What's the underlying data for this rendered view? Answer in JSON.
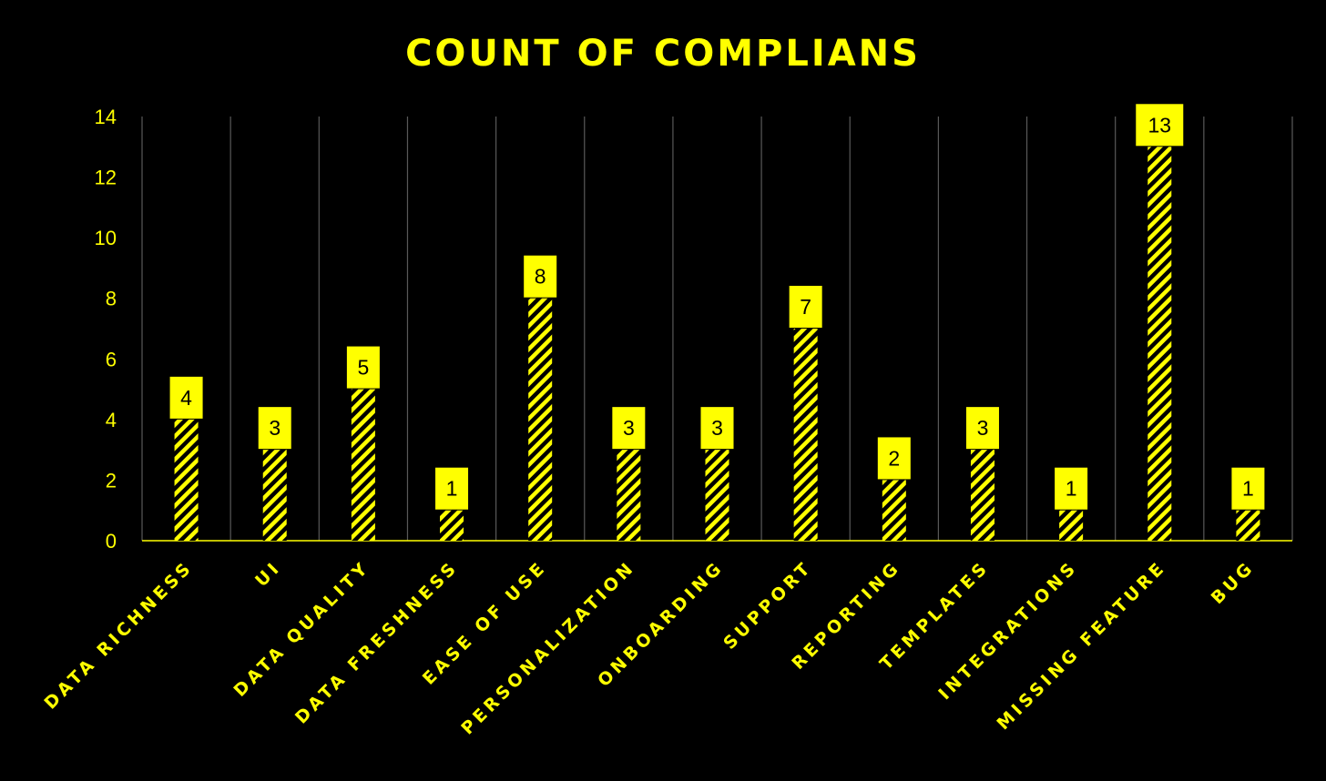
{
  "chart_data": {
    "type": "bar",
    "title": "COUNT OF COMPLIANS",
    "xlabel": "",
    "ylabel": "",
    "categories": [
      "DATA RICHNESS",
      "UI",
      "DATA QUALITY",
      "DATA FRESHNESS",
      "EASE OF USE",
      "PERSONALIZATION",
      "ONBOARDING",
      "SUPPORT",
      "REPORTING",
      "TEMPLATES",
      "INTEGRATIONS",
      "MISSING FEATURE",
      "BUG"
    ],
    "values": [
      4,
      3,
      5,
      1,
      8,
      3,
      3,
      7,
      2,
      3,
      1,
      13,
      1
    ],
    "ylim": [
      0,
      14
    ],
    "yticks": [
      0,
      2,
      4,
      6,
      8,
      10,
      12,
      14
    ],
    "grid": "vertical",
    "legend": "none",
    "data_labels": true,
    "colors": {
      "background": "#000000",
      "accent": "#FFFF00",
      "bar_stripe": "#000000",
      "grid": "#595959",
      "label_text": "#000000"
    }
  }
}
